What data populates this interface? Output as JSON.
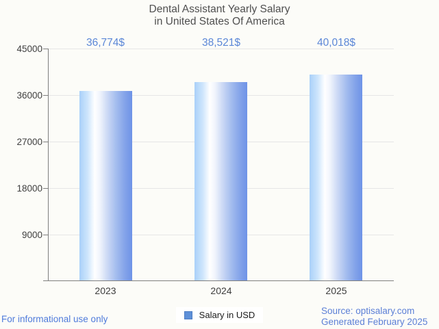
{
  "title": {
    "line1": "Dental Assistant Yearly Salary",
    "line2": "in United States Of America"
  },
  "chart_data": {
    "type": "bar",
    "title": "Dental Assistant Yearly Salary in United States Of America",
    "categories": [
      "2023",
      "2024",
      "2025"
    ],
    "values": [
      36774,
      38521,
      40018
    ],
    "value_labels": [
      "36,774$",
      "38,521$",
      "40,018$"
    ],
    "series": [
      {
        "name": "Salary in USD",
        "values": [
          36774,
          38521,
          40018
        ]
      }
    ],
    "xlabel": "",
    "ylabel": "",
    "ylim": [
      0,
      45000
    ],
    "yticks": [
      45000,
      36000,
      27000,
      18000,
      9000
    ],
    "grid": true,
    "legend_position": "bottom",
    "bar_gradient_left": "#a9d0f9",
    "bar_gradient_mid": "#ffffff",
    "bar_gradient_right": "#6e93e7"
  },
  "legend": {
    "label": "Salary in USD",
    "marker_color": "#5e90d8",
    "marker_border_color": "#4d7dc4"
  },
  "footer": {
    "left_note": "For informational use only",
    "source": "Source: optisalary.com",
    "generated": "Generated February 2025"
  },
  "colors": {
    "background": "#fcfcf8",
    "title_text": "#4f4f4f",
    "axis": "#7f7f7f",
    "gridline": "#e6e6e6",
    "value_label_text": "#5b87d7",
    "footer_text": "#4f7bdb"
  }
}
